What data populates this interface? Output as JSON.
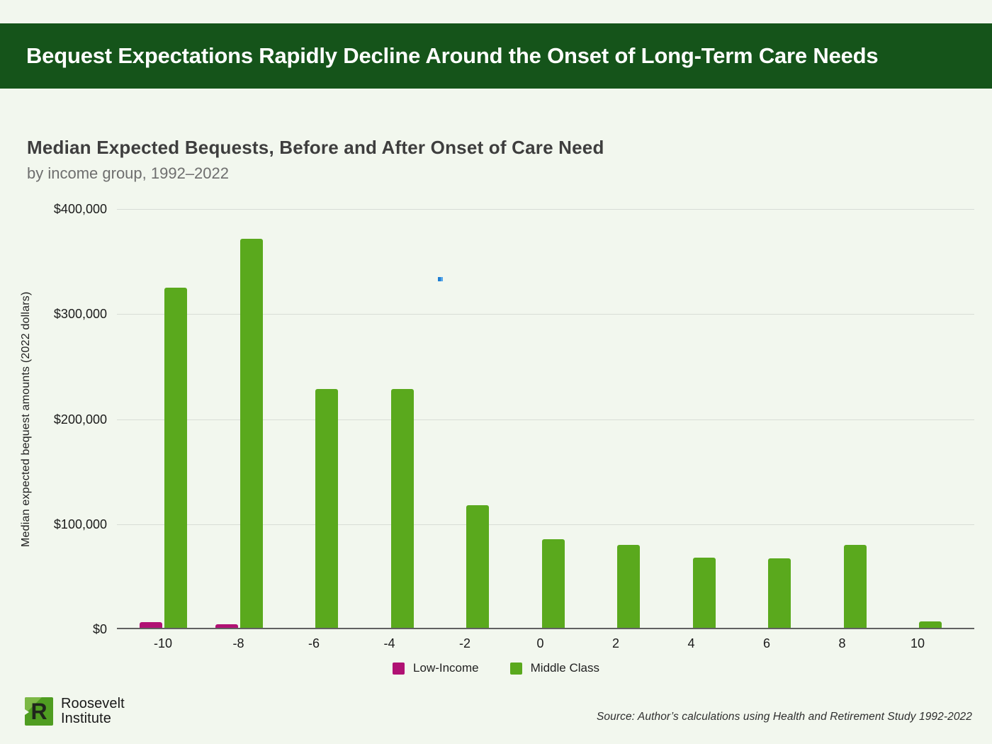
{
  "banner": {
    "title": "Bequest Expectations Rapidly Decline Around the Onset of Long-Term Care Needs",
    "bg_color": "#15541a"
  },
  "chart": {
    "title": "Median Expected Bequests, Before and After Onset of Care Need",
    "subtitle": "by income group, 1992–2022"
  },
  "chart_data": {
    "type": "bar",
    "title": "Median Expected Bequests, Before and After Onset of Care Need",
    "subtitle": "by income group, 1992–2022",
    "categories": [
      -10,
      -8,
      -6,
      -4,
      -2,
      0,
      2,
      4,
      6,
      8,
      10
    ],
    "series": [
      {
        "name": "Low-Income",
        "color": "#b01173",
        "values": [
          5500,
          3500,
          0,
          0,
          0,
          0,
          0,
          0,
          0,
          0,
          0
        ]
      },
      {
        "name": "Middle Class",
        "color": "#5aa91d",
        "values": [
          324000,
          370000,
          227000,
          227000,
          117000,
          84000,
          79000,
          67000,
          66000,
          79000,
          6000
        ]
      }
    ],
    "xlabel": "",
    "ylabel": "Median expected bequest amounts (2022 dollars)",
    "ylim": [
      0,
      400000
    ],
    "yticks": [
      "$0",
      "$100,000",
      "$200,000",
      "$300,000",
      "$400,000"
    ],
    "grid": true,
    "legend_position": "bottom"
  },
  "footer": {
    "logo_line1": "Roosevelt",
    "logo_line2": "Institute",
    "logo_green": "#4f9d21",
    "logo_light_green": "#7cb845",
    "source": "Source: Author’s calculations using Health and Retirement Study 1992-2022"
  }
}
